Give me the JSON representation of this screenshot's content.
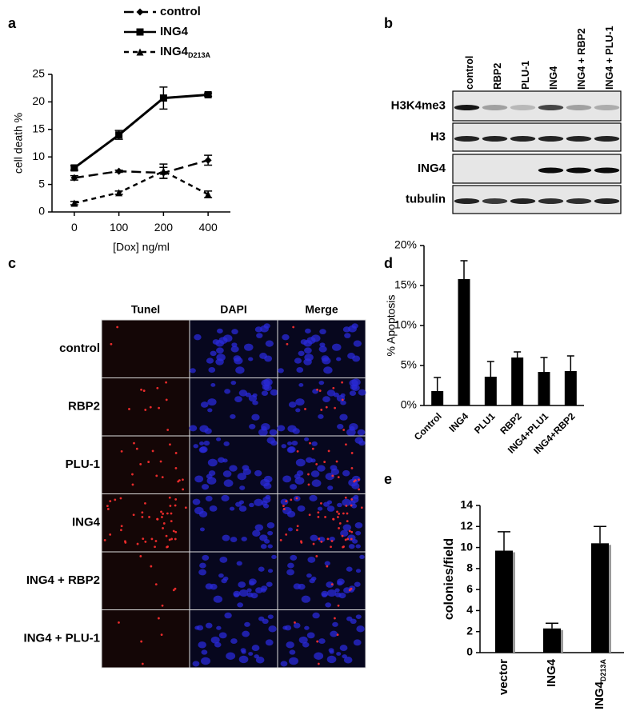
{
  "panel_labels": [
    "a",
    "b",
    "c",
    "d",
    "e"
  ],
  "chart_data": [
    {
      "type": "line",
      "ylabel": "cell death %",
      "xlabel": "[Dox] ng/ml",
      "categories": [
        "0",
        "100",
        "200",
        "400"
      ],
      "ylim": [
        0,
        25
      ],
      "yticks": [
        0,
        5,
        10,
        15,
        20,
        25
      ],
      "series": [
        {
          "name": "control",
          "color": "#000000",
          "marker": "diamond",
          "dash": "12 6",
          "values": [
            6.2,
            7.4,
            7.1,
            9.4
          ],
          "errors": [
            0.4,
            0.2,
            1.0,
            0.9
          ]
        },
        {
          "name": "ING4",
          "color": "#000000",
          "marker": "square",
          "dash": "none",
          "values": [
            8.0,
            14.0,
            20.7,
            21.3
          ],
          "errors": [
            0.4,
            0.8,
            2.0,
            0.3
          ]
        },
        {
          "name": "ING4",
          "name_subscript": "D213A",
          "color": "#000000",
          "marker": "triangle",
          "dash": "6 5",
          "values": [
            1.6,
            3.5,
            7.4,
            3.2
          ],
          "errors": [
            0.3,
            0.3,
            1.3,
            0.6
          ]
        }
      ]
    },
    {
      "type": "bar",
      "ylabel": "% Apoptosis",
      "categories": [
        "Control",
        "ING4",
        "PLU1",
        "RBP2",
        "ING4+PLU1",
        "ING4+RBP2"
      ],
      "values": [
        1.8,
        15.8,
        3.6,
        6.0,
        4.2,
        4.3
      ],
      "errors": [
        1.7,
        2.3,
        1.9,
        0.7,
        1.8,
        1.9
      ],
      "color": "#000000",
      "ylim": [
        0,
        20
      ],
      "yticks": [
        {
          "value": 0,
          "label": "0%"
        },
        {
          "value": 5,
          "label": "5%"
        },
        {
          "value": 10,
          "label": "10%"
        },
        {
          "value": 15,
          "label": "15%"
        },
        {
          "value": 20,
          "label": "20%"
        }
      ]
    },
    {
      "type": "bar",
      "ylabel": "colonies/field",
      "categories": [
        "vector",
        "ING4",
        "ING4"
      ],
      "category_subscripts": [
        null,
        null,
        "D213A"
      ],
      "values": [
        9.7,
        2.3,
        10.4
      ],
      "errors": [
        1.8,
        0.5,
        1.6
      ],
      "color": "#000000",
      "shadow_color": "#999999",
      "ylim": [
        0,
        14
      ],
      "yticks": [
        0,
        2,
        4,
        6,
        8,
        10,
        12,
        14
      ]
    }
  ],
  "blot": {
    "lanes": [
      "control",
      "RBP2",
      "PLU-1",
      "ING4",
      "ING4 + RBP2",
      "ING4 + PLU-1"
    ],
    "rows": [
      "H3K4me3",
      "H3",
      "ING4",
      "tubulin"
    ]
  },
  "microscopy": {
    "columns": [
      "Tunel",
      "DAPI",
      "Merge"
    ],
    "rows": [
      "control",
      "RBP2",
      "PLU-1",
      "ING4",
      "ING4 + RBP2",
      "ING4 + PLU-1"
    ]
  }
}
